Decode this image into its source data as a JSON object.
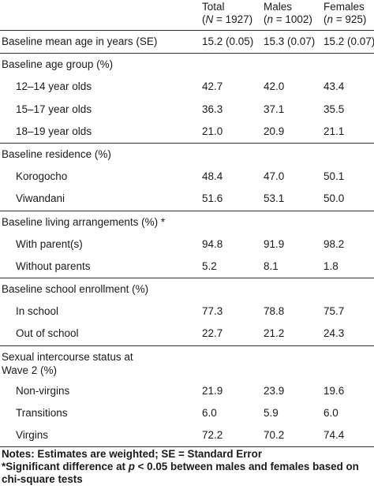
{
  "header": {
    "total_label": "Total",
    "total_n": "(N = 1927)",
    "males_label": "Males",
    "males_n": "(n = 1002)",
    "females_label": "Females",
    "females_n": "(n = 925)"
  },
  "rows": [
    {
      "label": "Baseline mean age in years (SE)",
      "total": "15.2 (0.05)",
      "males": "15.3 (0.07)",
      "females": "15.2 (0.07)"
    },
    {
      "label": "Baseline age group (%)",
      "total": "",
      "males": "",
      "females": ""
    },
    {
      "label": "12–14 year olds",
      "total": "42.7",
      "males": "42.0",
      "females": "43.4"
    },
    {
      "label": "15–17 year olds",
      "total": "36.3",
      "males": "37.1",
      "females": "35.5"
    },
    {
      "label": "18–19 year olds",
      "total": "21.0",
      "males": "20.9",
      "females": "21.1"
    },
    {
      "label": "Baseline residence (%)",
      "total": "",
      "males": "",
      "females": ""
    },
    {
      "label": "Korogocho",
      "total": "48.4",
      "males": "47.0",
      "females": "50.1"
    },
    {
      "label": "Viwandani",
      "total": "51.6",
      "males": "53.1",
      "females": "50.0"
    },
    {
      "label": "Baseline living arrangements (%) *",
      "total": "",
      "males": "",
      "females": ""
    },
    {
      "label": "With parent(s)",
      "total": "94.8",
      "males": "91.9",
      "females": "98.2"
    },
    {
      "label": "Without parents",
      "total": "5.2",
      "males": "8.1",
      "females": "1.8"
    },
    {
      "label": "Baseline school enrollment (%)",
      "total": "",
      "males": "",
      "females": ""
    },
    {
      "label": "In school",
      "total": "77.3",
      "males": "78.8",
      "females": "75.7"
    },
    {
      "label": "Out of school",
      "total": "22.7",
      "males": "21.2",
      "females": "24.3"
    },
    {
      "label_line1": "Sexual intercourse status at",
      "label_line2": "Wave 2 (%)",
      "total": "",
      "males": "",
      "females": ""
    },
    {
      "label": "Non-virgins",
      "total": "21.9",
      "males": "23.9",
      "females": "19.6"
    },
    {
      "label": "Transitions",
      "total": "6.0",
      "males": "5.9",
      "females": "6.0"
    },
    {
      "label": "Virgins",
      "total": "72.2",
      "males": "70.2",
      "females": "74.4"
    }
  ],
  "notes": {
    "line1": "Notes: Estimates are weighted; SE = Standard Error",
    "line2_prefix": "*Significant difference at ",
    "line2_p": "p",
    "line2_suffix": " < 0.05 between males and females based on",
    "line3": "chi-square tests"
  }
}
